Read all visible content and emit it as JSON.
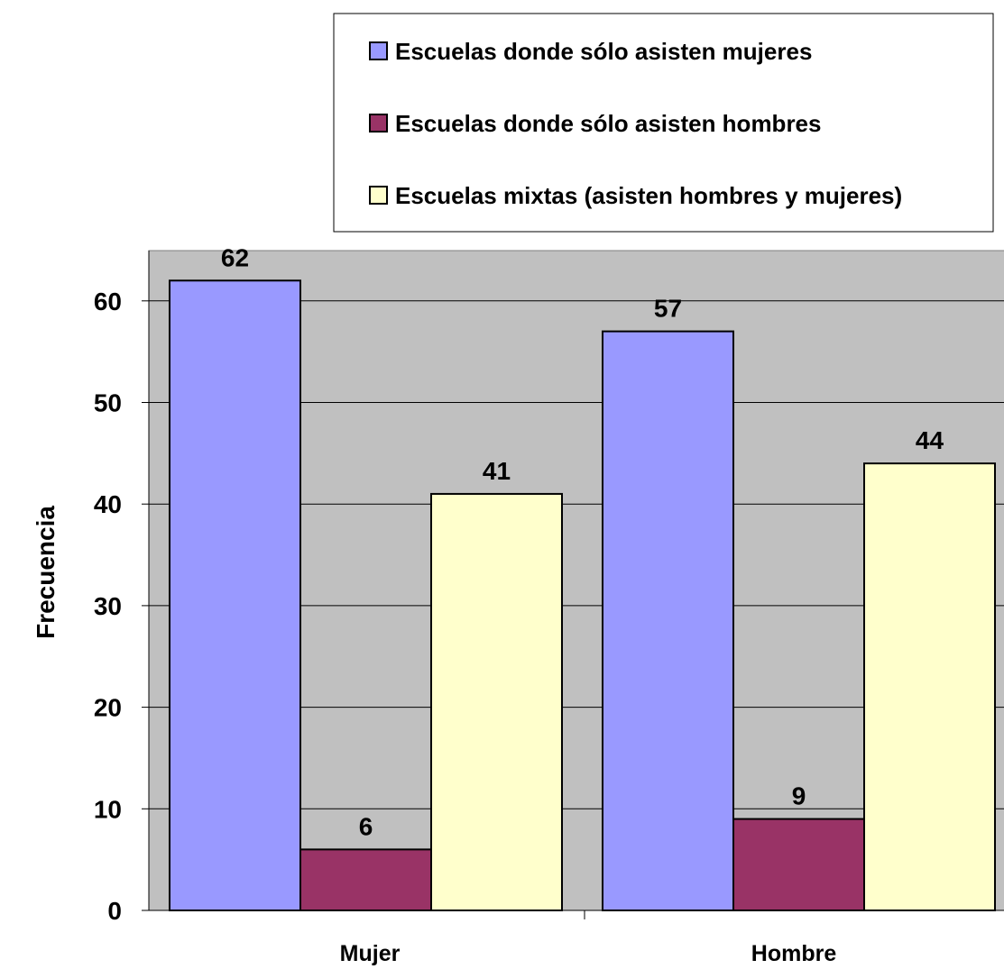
{
  "chart_data": {
    "type": "bar",
    "title": "",
    "xlabel": "",
    "ylabel": "Frecuencia",
    "ylim": [
      0,
      65
    ],
    "yticks": [
      0,
      10,
      20,
      30,
      40,
      50,
      60
    ],
    "grid": true,
    "legend_position": "top-right",
    "categories": [
      "Mujer",
      "Hombre"
    ],
    "series": [
      {
        "name": "Escuelas donde sólo asisten mujeres",
        "color": "#9999FF",
        "values": [
          62,
          57
        ]
      },
      {
        "name": "Escuelas donde sólo asisten hombres",
        "color": "#993366",
        "values": [
          6,
          9
        ]
      },
      {
        "name": "Escuelas mixtas (asisten hombres y mujeres)",
        "color": "#FFFFCC",
        "values": [
          41,
          44
        ]
      }
    ],
    "plot_background": "#C0C0C0"
  }
}
